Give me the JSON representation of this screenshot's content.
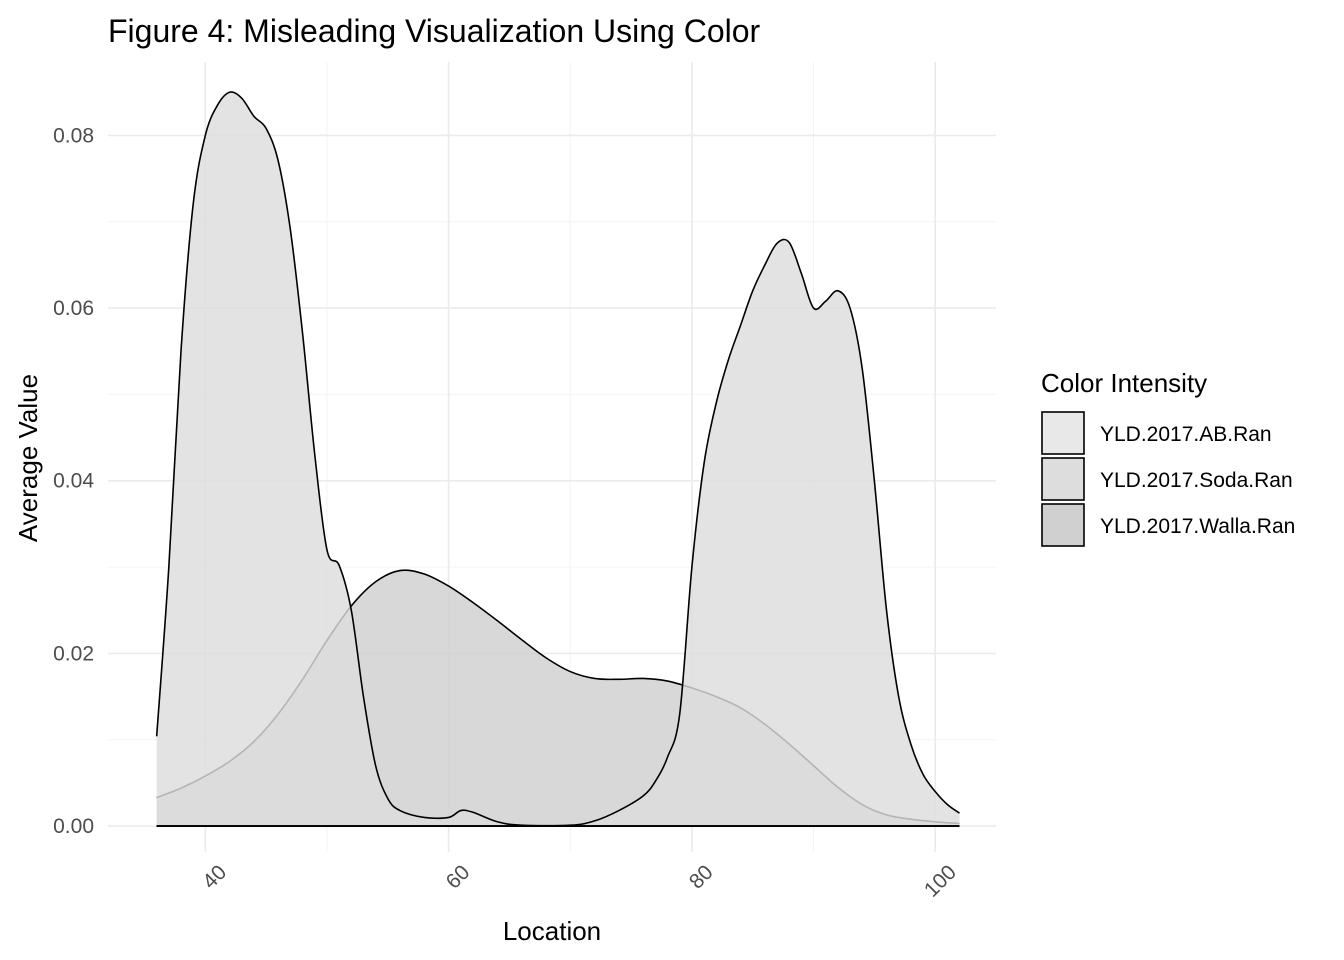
{
  "chart_data": {
    "type": "area",
    "title": "Figure 4: Misleading Visualization Using Color",
    "xlabel": "Location",
    "ylabel": "Average Value",
    "xlim": [
      32,
      105
    ],
    "ylim": [
      -0.003,
      0.0885
    ],
    "x_ticks": [
      40,
      60,
      80,
      100
    ],
    "x_tick_labels": [
      "40",
      "60",
      "80",
      "100"
    ],
    "y_ticks": [
      0,
      0.02,
      0.04,
      0.06,
      0.08
    ],
    "y_tick_labels": [
      "0.00",
      "0.02",
      "0.04",
      "0.06",
      "0.08"
    ],
    "grid": true,
    "legend": {
      "title": "Color Intensity",
      "position": "right",
      "entries": [
        "YLD.2017.AB.Ran",
        "YLD.2017.Soda.Ran",
        "YLD.2017.Walla.Ran"
      ]
    },
    "series": [
      {
        "name": "YLD.2017.Walla.Ran",
        "color": "#d0d0d0",
        "points": [
          [
            36,
            0.0033
          ],
          [
            38,
            0.0044
          ],
          [
            40,
            0.0058
          ],
          [
            42,
            0.0075
          ],
          [
            44,
            0.0098
          ],
          [
            46,
            0.013
          ],
          [
            48,
            0.017
          ],
          [
            50,
            0.0215
          ],
          [
            52,
            0.0255
          ],
          [
            54,
            0.0283
          ],
          [
            56,
            0.0296
          ],
          [
            58,
            0.0292
          ],
          [
            60,
            0.0278
          ],
          [
            62,
            0.0259
          ],
          [
            64,
            0.0238
          ],
          [
            66,
            0.0216
          ],
          [
            68,
            0.0195
          ],
          [
            70,
            0.0179
          ],
          [
            72,
            0.0171
          ],
          [
            74,
            0.017
          ],
          [
            76,
            0.0171
          ],
          [
            78,
            0.0168
          ],
          [
            80,
            0.016
          ],
          [
            82,
            0.015
          ],
          [
            84,
            0.0137
          ],
          [
            86,
            0.0118
          ],
          [
            88,
            0.0095
          ],
          [
            90,
            0.007
          ],
          [
            92,
            0.0045
          ],
          [
            94,
            0.0025
          ],
          [
            96,
            0.0013
          ],
          [
            98,
            0.0008
          ],
          [
            100,
            0.0005
          ],
          [
            102,
            0.0003
          ]
        ]
      },
      {
        "name": "YLD.2017.Soda.Ran",
        "color": "#dddddd",
        "points": [
          [
            36,
            0.0104
          ],
          [
            37,
            0.03
          ],
          [
            38,
            0.055
          ],
          [
            39,
            0.072
          ],
          [
            40,
            0.08
          ],
          [
            41,
            0.0835
          ],
          [
            42,
            0.085
          ],
          [
            43,
            0.0843
          ],
          [
            44,
            0.0822
          ],
          [
            45,
            0.0808
          ],
          [
            46,
            0.077
          ],
          [
            47,
            0.069
          ],
          [
            48,
            0.057
          ],
          [
            49,
            0.043
          ],
          [
            50,
            0.032
          ],
          [
            51,
            0.0302
          ],
          [
            52,
            0.025
          ],
          [
            53,
            0.015
          ],
          [
            54,
            0.007
          ],
          [
            55,
            0.0032
          ],
          [
            56,
            0.0018
          ],
          [
            58,
            0.001
          ],
          [
            60,
            0.001
          ],
          [
            61,
            0.0018
          ],
          [
            62,
            0.0016
          ],
          [
            64,
            0.0005
          ],
          [
            66,
            0.0001
          ],
          [
            70,
            0.0001
          ],
          [
            72,
            0.0006
          ],
          [
            74,
            0.0018
          ],
          [
            76,
            0.0035
          ],
          [
            77,
            0.0052
          ],
          [
            78,
            0.008
          ],
          [
            79,
            0.013
          ],
          [
            80,
            0.03
          ],
          [
            81,
            0.042
          ],
          [
            82,
            0.049
          ],
          [
            83,
            0.054
          ],
          [
            84,
            0.058
          ],
          [
            85,
            0.062
          ],
          [
            86,
            0.065
          ],
          [
            87,
            0.0675
          ],
          [
            88,
            0.0676
          ],
          [
            89,
            0.064
          ],
          [
            90,
            0.06
          ],
          [
            91,
            0.0608
          ],
          [
            92,
            0.062
          ],
          [
            93,
            0.06
          ],
          [
            94,
            0.053
          ],
          [
            95,
            0.04
          ],
          [
            96,
            0.025
          ],
          [
            97,
            0.015
          ],
          [
            98,
            0.0095
          ],
          [
            99,
            0.006
          ],
          [
            100,
            0.004
          ],
          [
            101,
            0.0025
          ],
          [
            102,
            0.0015
          ]
        ]
      },
      {
        "name": "YLD.2017.AB.Ran",
        "color": "#e8e8e8",
        "points": [
          [
            36,
            0.0
          ],
          [
            102,
            0.0
          ]
        ]
      }
    ]
  }
}
